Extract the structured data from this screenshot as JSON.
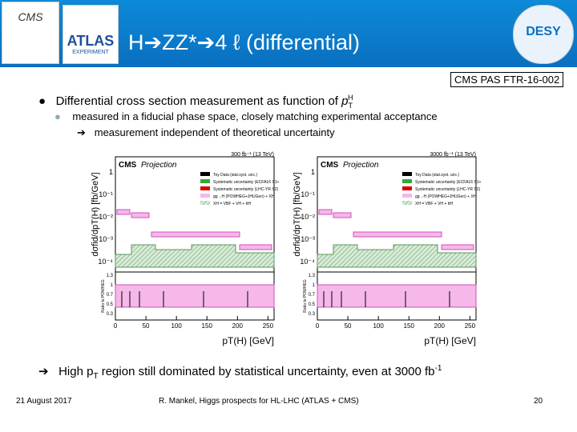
{
  "header": {
    "title": "H➔ZZ*➔4 ℓ (differential)",
    "logo_left_1": "CMS",
    "logo_left_2": "ATLAS",
    "logo_left_3": "EXPERIMENT",
    "logo_right": "DESY"
  },
  "reference": "CMS PAS FTR-16-002",
  "bullets": [
    {
      "text": "Differential cross section measurement as function of ",
      "var": "p",
      "sub": "T",
      "sup": "H"
    },
    {
      "text": "measured in a fiducial phase space, closely matching experimental acceptance"
    },
    {
      "text": "measurement independent of theoretical uncertainty"
    },
    {
      "text": "High p",
      "sub": "T",
      "rest": " region still dominated by statistical uncertainty, even at 3000 fb",
      "sup": "-1"
    }
  ],
  "plots": [
    {
      "experiment": "CMS",
      "label": "Projection",
      "lumi": "300 fb⁻¹ (13 TeV)"
    },
    {
      "experiment": "CMS",
      "label": "Projection",
      "lumi": "3000 fb⁻¹ (13 TeV)"
    }
  ],
  "plot_common": {
    "legend": [
      "Toy Data (stat.syst. unc.)",
      "Systematic uncertainty (ECFA16 S1+)",
      "Systematic uncertainty (LHC-YR S2)",
      "gg→H (POWHEG+JHUGen) + XH",
      "XH = VBF + VH + ttH"
    ],
    "ylabel": "dσfid/dpT(H) [fb/GeV]",
    "ratio_label": "Ratio to POWHEG",
    "xlabel": "pT(H) [GeV]",
    "xlim": [
      0,
      260
    ],
    "xticks": [
      0,
      50,
      100,
      150,
      200,
      250
    ],
    "yticks": [
      "1",
      "10⁻¹",
      "10⁻²",
      "10⁻³",
      "10⁻⁴"
    ],
    "ratio_ticks": [
      "1.3",
      "1",
      "0.7",
      "0.5",
      "0.3"
    ]
  },
  "footer": {
    "date": "21 August 2017",
    "center": "R. Mankel, Higgs prospects for HL-LHC (ATLAS + CMS)",
    "page": "20"
  }
}
